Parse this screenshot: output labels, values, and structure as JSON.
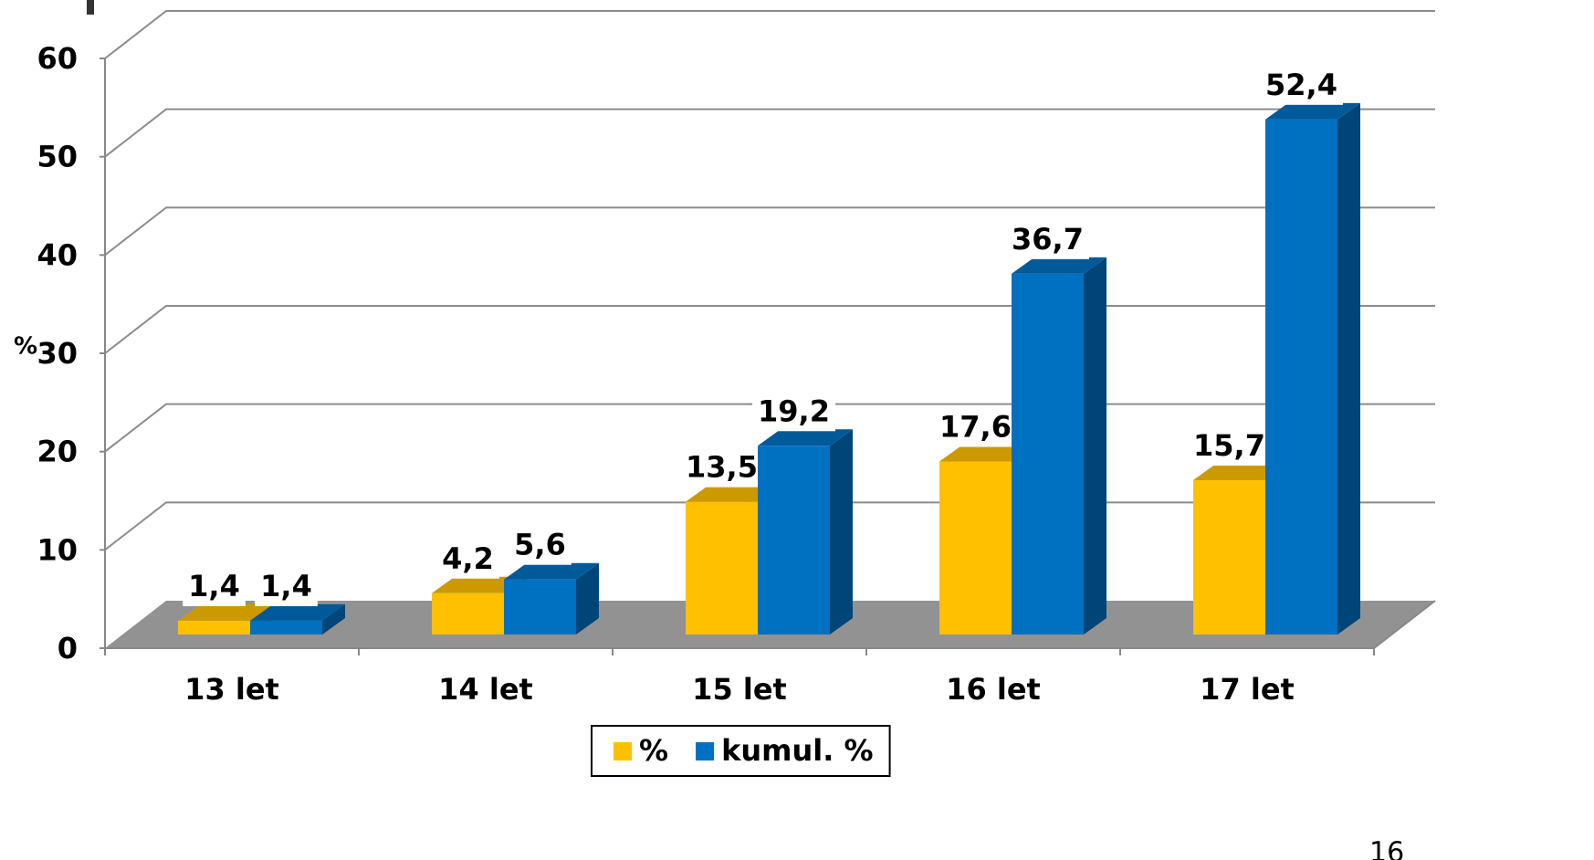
{
  "chart_data": {
    "type": "bar",
    "ylabel": "%",
    "categories": [
      "13 let",
      "14 let",
      "15 let",
      "16 let",
      "17 let"
    ],
    "series": [
      {
        "name": "%",
        "color": "#FFC000",
        "values": [
          1.4,
          4.2,
          13.5,
          17.6,
          15.7
        ],
        "value_labels": [
          "1,4",
          "4,2",
          "13,5",
          "17,6",
          "15,7"
        ]
      },
      {
        "name": "kumul. %",
        "color": "#0070C0",
        "values": [
          1.4,
          5.6,
          19.2,
          36.7,
          52.4
        ],
        "value_labels": [
          "1,4",
          "5,6",
          "19,2",
          "36,7",
          "52,4"
        ]
      }
    ],
    "ylim": [
      0,
      60
    ],
    "yticks": [
      0,
      10,
      20,
      30,
      40,
      50,
      60
    ],
    "grid": true,
    "legend": "bottom"
  },
  "page_number": "16"
}
